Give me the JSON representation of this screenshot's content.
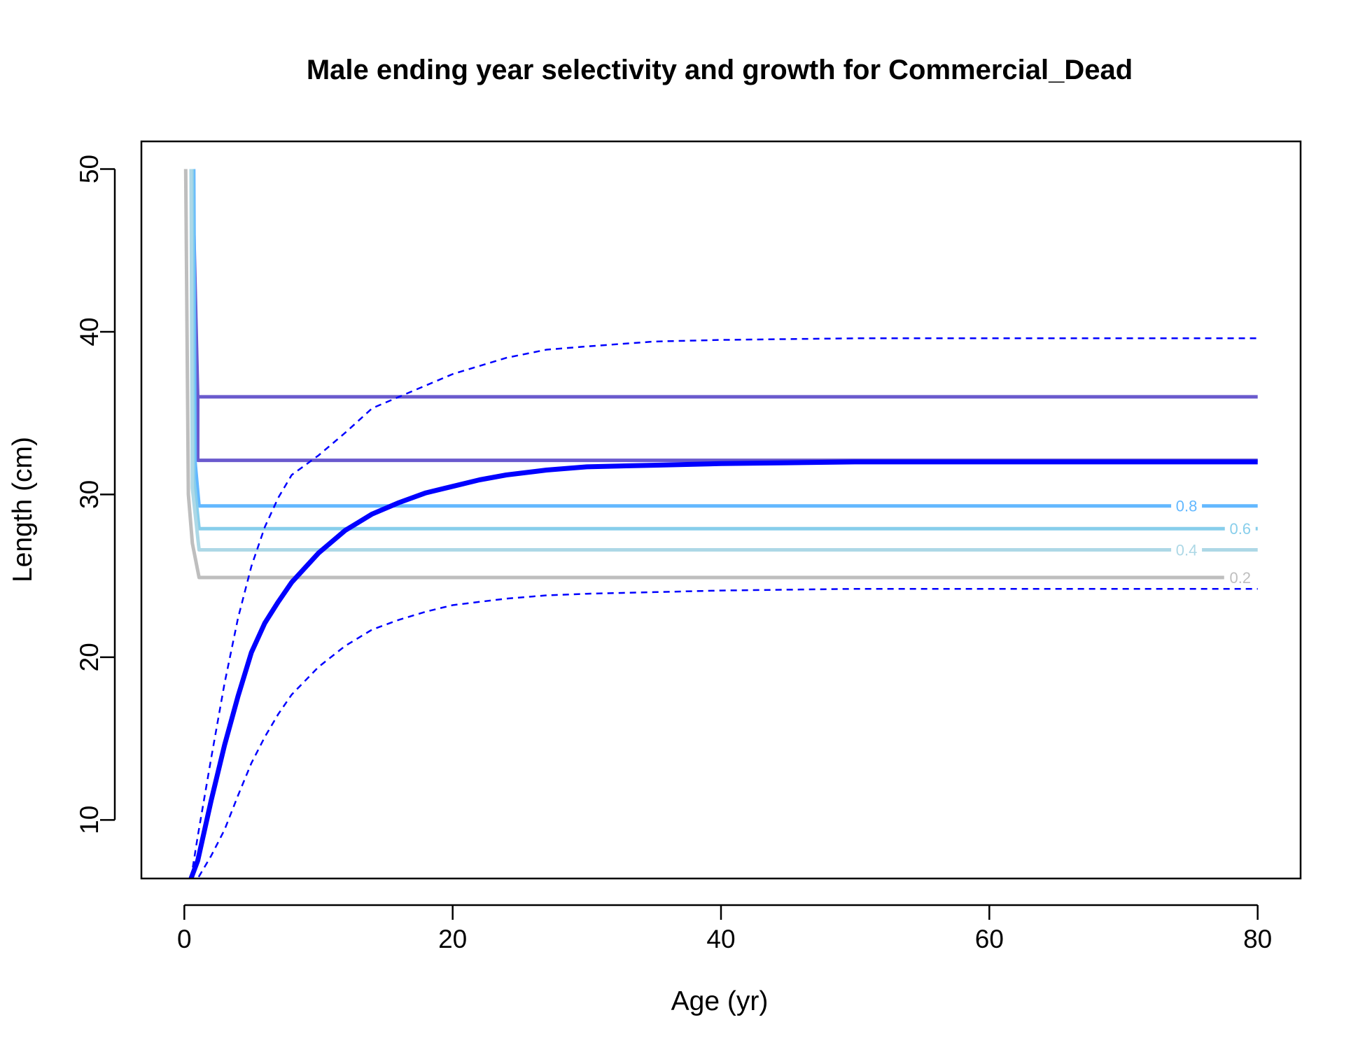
{
  "chart_data": {
    "type": "line",
    "title": "Male ending year selectivity and growth for Commercial_Dead",
    "xlabel": "Age (yr)",
    "ylabel": "Length (cm)",
    "xlim": [
      -3.2,
      83.2
    ],
    "ylim": [
      6.4,
      51.7
    ],
    "xticks": [
      0,
      20,
      40,
      60,
      80
    ],
    "yticks": [
      10,
      20,
      30,
      40,
      50
    ],
    "grid": false,
    "legend": "none",
    "colors": {
      "growth": "#0000FF",
      "contour_1": "#6A5ACD",
      "contour_0.8": "#63B8FF",
      "contour_0.6": "#87CEEB",
      "contour_0.4": "#ADD8E6",
      "contour_0.2": "#BEBEBE"
    },
    "growth_curve": {
      "x": [
        0.5,
        1,
        2,
        3,
        4,
        5,
        6,
        7,
        8,
        10,
        12,
        14,
        16,
        18,
        20,
        22,
        24,
        27,
        30,
        35,
        40,
        45,
        50,
        60,
        70,
        80
      ],
      "y": [
        6.4,
        7.5,
        11.2,
        14.6,
        17.6,
        20.3,
        22.1,
        23.4,
        24.6,
        26.4,
        27.8,
        28.8,
        29.5,
        30.1,
        30.5,
        30.9,
        31.2,
        31.5,
        31.7,
        31.8,
        31.9,
        31.95,
        32.0,
        32.0,
        32.0,
        32.0
      ]
    },
    "growth_upper": {
      "x": [
        0.5,
        1,
        2,
        3,
        4,
        5,
        6,
        7,
        8,
        10,
        12,
        14,
        16,
        18,
        20,
        22,
        24,
        27,
        30,
        35,
        40,
        45,
        50,
        60,
        70,
        80
      ],
      "y": [
        6.4,
        9.0,
        13.8,
        18.4,
        22.4,
        25.6,
        28.0,
        29.8,
        31.2,
        32.4,
        33.8,
        35.3,
        36.0,
        36.7,
        37.4,
        37.9,
        38.4,
        38.9,
        39.1,
        39.4,
        39.5,
        39.55,
        39.6,
        39.6,
        39.6,
        39.6
      ]
    },
    "growth_lower": {
      "x": [
        0.5,
        1,
        2,
        3,
        4,
        5,
        6,
        7,
        8,
        10,
        12,
        14,
        16,
        18,
        20,
        22,
        24,
        27,
        30,
        35,
        40,
        45,
        50,
        60,
        70,
        80
      ],
      "y": [
        6.0,
        6.4,
        7.8,
        9.4,
        11.5,
        13.5,
        15.1,
        16.5,
        17.7,
        19.4,
        20.7,
        21.7,
        22.3,
        22.8,
        23.2,
        23.4,
        23.6,
        23.8,
        23.9,
        24.0,
        24.1,
        24.15,
        24.2,
        24.2,
        24.2,
        24.2
      ]
    },
    "selectivity_contours": [
      {
        "level": "1",
        "x": [
          0.6,
          1.0,
          1.0,
          80
        ],
        "y": [
          50,
          36.0,
          32.1,
          32.1
        ],
        "x2": [
          1.0,
          80
        ],
        "y2": [
          36.0,
          36.0
        ],
        "label": ""
      },
      {
        "level": "0.8",
        "x": [
          0.7,
          0.8,
          1.1,
          80
        ],
        "y": [
          50,
          32.0,
          29.3,
          29.3
        ],
        "label": "0.8",
        "label_x": 74.7
      },
      {
        "level": "0.6",
        "x": [
          0.6,
          0.7,
          1.1,
          80
        ],
        "y": [
          50,
          31.0,
          27.9,
          27.9
        ],
        "label": "0.6",
        "label_x": 78.7
      },
      {
        "level": "0.4",
        "x": [
          0.5,
          0.6,
          1.1,
          80
        ],
        "y": [
          50,
          30.4,
          26.6,
          26.6
        ],
        "label": "0.4",
        "label_x": 74.7
      },
      {
        "level": "0.2",
        "x": [
          0.1,
          0.3,
          0.6,
          1.1,
          77.5
        ],
        "y": [
          50,
          30.0,
          27.0,
          24.9,
          24.9
        ],
        "label": "0.2",
        "label_x": 78.7
      }
    ]
  }
}
